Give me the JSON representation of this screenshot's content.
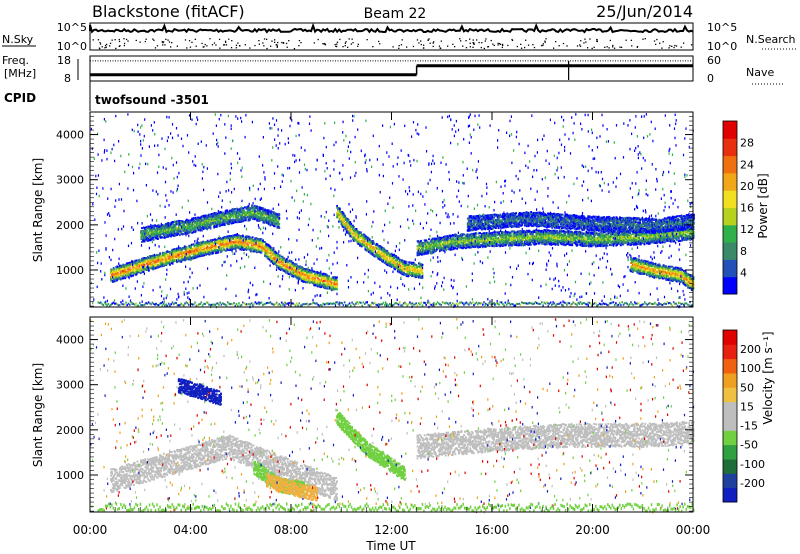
{
  "header": {
    "station": "Blackstone (fitACF)",
    "beam": "Beam 22",
    "date": "25/Jun/2014"
  },
  "chart_data": [
    {
      "type": "line",
      "panel": "noise",
      "left_label": "N.Sky",
      "right_label": "N.Search",
      "left_ticks": [
        "10^5",
        "10^0"
      ],
      "right_ticks": [
        "10^5",
        "10^0"
      ]
    },
    {
      "type": "line",
      "panel": "frequency",
      "left_label_1": "Freq.",
      "left_label_2": "[MHz]",
      "left_ticks": [
        18,
        8
      ],
      "right_label": "Nave",
      "right_ticks": [
        60,
        0
      ],
      "freq_segments": [
        {
          "t_start": 0.0,
          "t_end": 13.0,
          "value": 10.4
        },
        {
          "t_start": 13.0,
          "t_end": 24.0,
          "value": 14.5
        }
      ],
      "nave_value": 52,
      "nave_dip_time": 19.05
    },
    {
      "type": "text",
      "panel": "cpid",
      "label": "CPID",
      "program": "twofsound -3501"
    },
    {
      "type": "heatmap",
      "panel": "power",
      "ylabel": "Slant Range [km]",
      "ylim": [
        180,
        4500
      ],
      "y_ticks": [
        1000,
        2000,
        3000,
        4000
      ],
      "colorbar_label": "Power [dB]",
      "colorbar_ticks": [
        4,
        8,
        12,
        16,
        20,
        24,
        28
      ],
      "colorbar_colors": [
        "#0000ff",
        "#2050b8",
        "#3a8a6a",
        "#2fb04a",
        "#b8d020",
        "#f0e020",
        "#f0a818",
        "#f07010",
        "#e83010",
        "#e00000"
      ],
      "echo_bands": [
        {
          "points": [
            [
              0.8,
              900
            ],
            [
              2.5,
              1200
            ],
            [
              4.5,
              1500
            ],
            [
              5.8,
              1650
            ],
            [
              6.8,
              1550
            ],
            [
              7.5,
              1200
            ],
            [
              8.5,
              900
            ],
            [
              9.8,
              700
            ]
          ],
          "level": 26
        },
        {
          "points": [
            [
              2.0,
              1800
            ],
            [
              4.0,
              2000
            ],
            [
              5.5,
              2200
            ],
            [
              6.5,
              2300
            ],
            [
              7.5,
              2100
            ]
          ],
          "level": 12
        },
        {
          "points": [
            [
              9.8,
              2300
            ],
            [
              10.5,
              1800
            ],
            [
              11.5,
              1400
            ],
            [
              12.5,
              1050
            ],
            [
              13.2,
              1000
            ]
          ],
          "level": 22
        },
        {
          "points": [
            [
              13.0,
              1500
            ],
            [
              14.5,
              1650
            ],
            [
              16.0,
              1700
            ],
            [
              18.0,
              1750
            ],
            [
              20.0,
              1700
            ],
            [
              22.0,
              1750
            ],
            [
              24.0,
              1850
            ]
          ],
          "level": 14
        },
        {
          "points": [
            [
              15.0,
              2050
            ],
            [
              17.5,
              2150
            ],
            [
              20.0,
              2050
            ],
            [
              22.5,
              2000
            ],
            [
              24.0,
              2100
            ]
          ],
          "level": 6
        },
        {
          "points": [
            [
              21.5,
              1150
            ],
            [
              22.5,
              1000
            ],
            [
              23.5,
              900
            ],
            [
              24.0,
              700
            ]
          ],
          "level": 24
        }
      ]
    },
    {
      "type": "heatmap",
      "panel": "velocity",
      "ylabel": "Slant Range [km]",
      "xlabel": "Time UT",
      "ylim": [
        180,
        4500
      ],
      "y_ticks": [
        1000,
        2000,
        3000,
        4000
      ],
      "x_ticks": [
        "00:00",
        "04:00",
        "08:00",
        "12:00",
        "16:00",
        "20:00",
        "00:00"
      ],
      "xlim": [
        0,
        24
      ],
      "colorbar_label": "Velocity [m s⁻¹]",
      "colorbar_ticks": [
        200,
        100,
        50,
        15,
        -15,
        -50,
        -100,
        -200
      ],
      "colorbar_colors": [
        "#1020c0",
        "#2040a0",
        "#1e6e3a",
        "#30a040",
        "#70d040",
        "#bebebe",
        "#bebebe",
        "#f0c040",
        "#f0a020",
        "#f06010",
        "#e82010",
        "#e00000"
      ],
      "echo_bands": [
        {
          "points": [
            [
              0.8,
              900
            ],
            [
              3.0,
              1250
            ],
            [
              5.5,
              1650
            ],
            [
              7.5,
              1200
            ],
            [
              9.8,
              700
            ]
          ],
          "class": "ground"
        },
        {
          "points": [
            [
              6.5,
              1200
            ],
            [
              7.5,
              800
            ],
            [
              8.5,
              700
            ]
          ],
          "class": "green"
        },
        {
          "points": [
            [
              9.8,
              2300
            ],
            [
              11.0,
              1600
            ],
            [
              12.5,
              1050
            ]
          ],
          "class": "green"
        },
        {
          "points": [
            [
              13.0,
              1650
            ],
            [
              16.0,
              1800
            ],
            [
              19.0,
              1900
            ],
            [
              22.0,
              1900
            ],
            [
              24.0,
              1950
            ]
          ],
          "class": "grey"
        },
        {
          "points": [
            [
              3.5,
              3000
            ],
            [
              4.5,
              2850
            ],
            [
              5.2,
              2700
            ]
          ],
          "class": "blue"
        },
        {
          "points": [
            [
              7.0,
              900
            ],
            [
              8.2,
              700
            ],
            [
              9.0,
              600
            ]
          ],
          "class": "orange"
        }
      ]
    }
  ]
}
